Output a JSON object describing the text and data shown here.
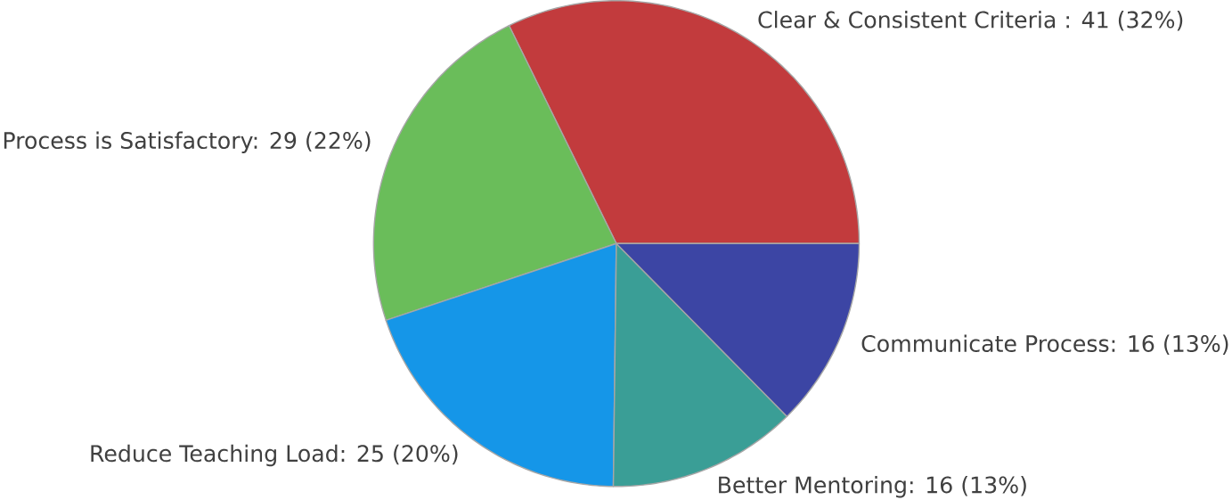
{
  "chart_data": {
    "type": "pie",
    "categories": [
      "Clear & Consistent Criteria : 41 (32%)",
      "Process is Satisfactory: 29 (22%)",
      "Reduce Teaching Load: 25 (20%)",
      "Better Mentoring: 16 (13%)",
      "Communicate Process: 16 (13%)"
    ],
    "values": [
      41,
      29,
      25,
      16,
      16
    ],
    "colors": [
      "#c23b3d",
      "#6abd5a",
      "#1596e8",
      "#3a9e96",
      "#3c45a4"
    ]
  }
}
